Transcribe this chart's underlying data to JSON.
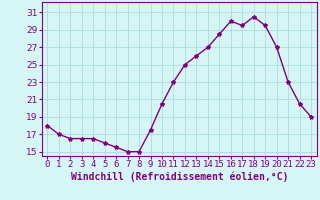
{
  "x": [
    0,
    1,
    2,
    3,
    4,
    5,
    6,
    7,
    8,
    9,
    10,
    11,
    12,
    13,
    14,
    15,
    16,
    17,
    18,
    19,
    20,
    21,
    22,
    23
  ],
  "y": [
    18.0,
    17.0,
    16.5,
    16.5,
    16.5,
    16.0,
    15.5,
    15.0,
    15.0,
    17.5,
    20.5,
    23.0,
    25.0,
    26.0,
    27.0,
    28.5,
    30.0,
    29.5,
    30.5,
    29.5,
    27.0,
    23.0,
    20.5,
    19.0
  ],
  "line_color": "#800080",
  "marker": "*",
  "marker_size": 3,
  "bg_color": "#d6f5f5",
  "grid_color": "#aadddd",
  "xlabel": "Windchill (Refroidissement éolien,°C)",
  "ylabel_ticks": [
    15,
    17,
    19,
    21,
    23,
    25,
    27,
    29,
    31
  ],
  "xlim": [
    -0.5,
    23.5
  ],
  "ylim": [
    14.5,
    32.2
  ],
  "xlabel_fontsize": 7,
  "tick_fontsize": 6.5,
  "line_width": 1.0
}
